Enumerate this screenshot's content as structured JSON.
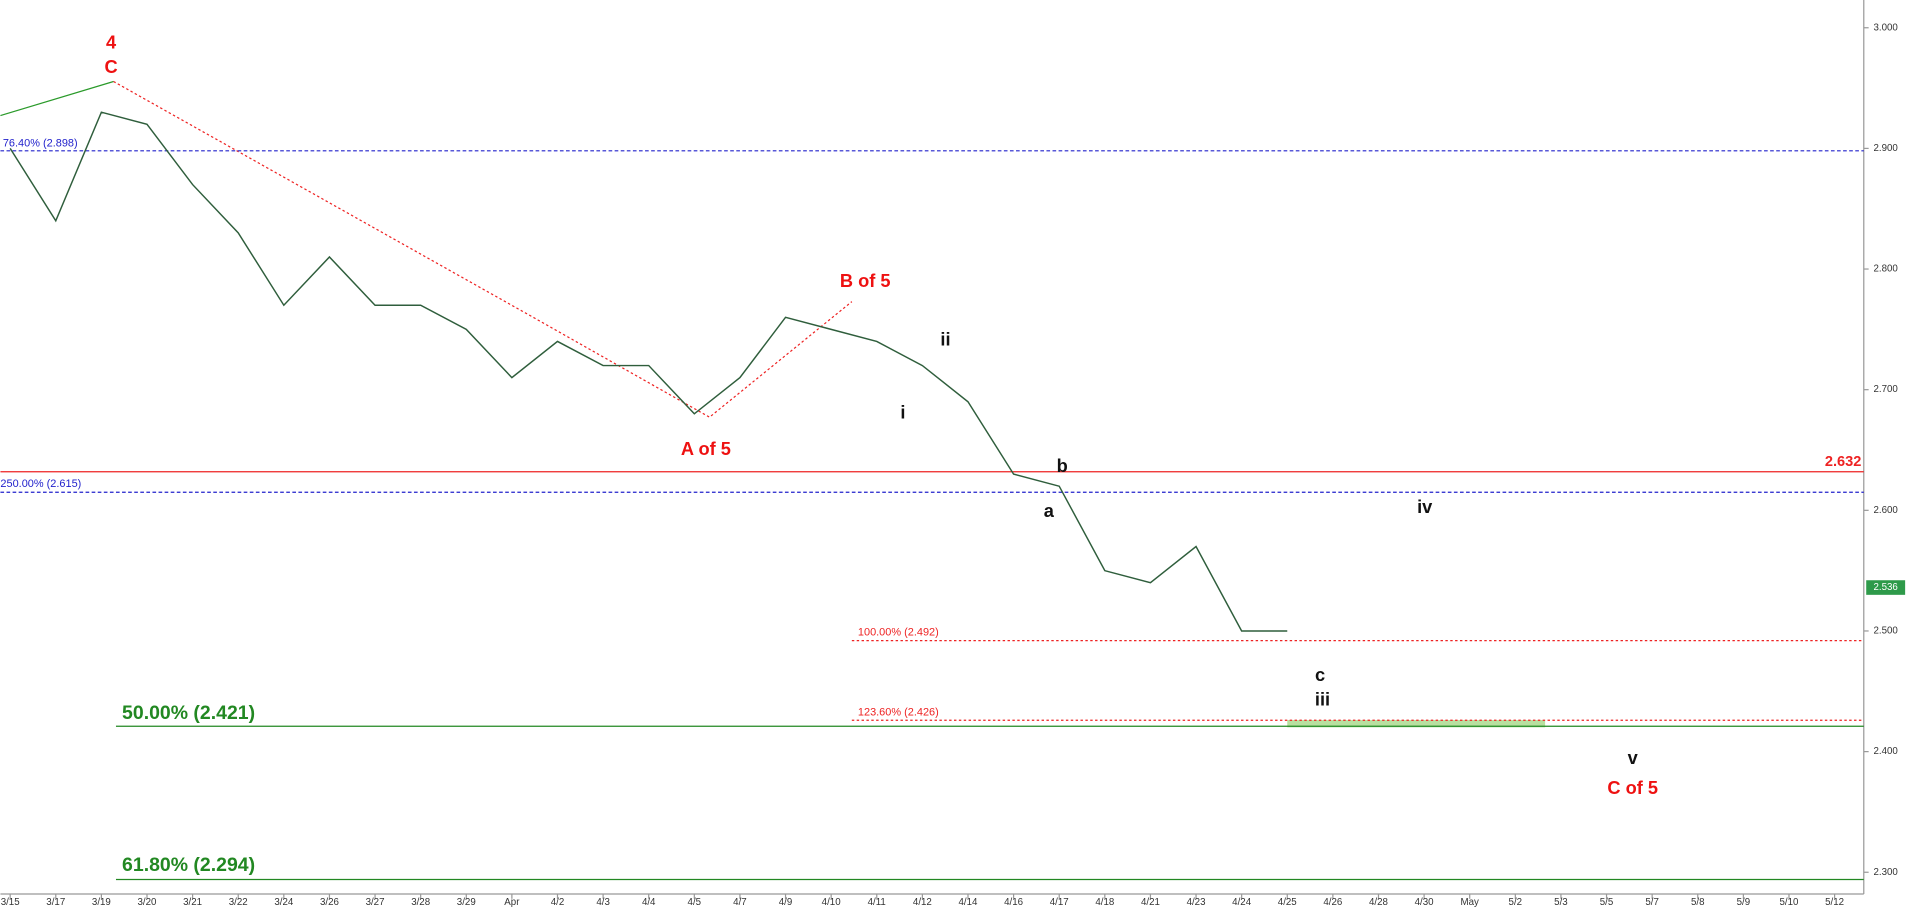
{
  "chart_data": {
    "type": "line",
    "categories": [
      "3/15",
      "3/17",
      "3/19",
      "3/20",
      "3/21",
      "3/22",
      "3/24",
      "3/26",
      "3/27",
      "3/28",
      "3/29",
      "Apr",
      "4/2",
      "4/3",
      "4/4",
      "4/5",
      "4/7",
      "4/9",
      "4/10",
      "4/11",
      "4/12",
      "4/14",
      "4/16",
      "4/17",
      "4/18",
      "4/21",
      "4/23",
      "4/24",
      "4/25",
      "4/26",
      "4/28",
      "4/30",
      "May",
      "5/2",
      "5/3",
      "5/5",
      "5/7",
      "5/8",
      "5/9",
      "5/10",
      "5/12"
    ],
    "series": [
      {
        "color": "#2f5e3c",
        "values": [
          2.9,
          2.84,
          2.93,
          2.92,
          2.87,
          2.83,
          2.77,
          2.81,
          2.77,
          2.77,
          2.75,
          2.71,
          2.74,
          2.72,
          2.72,
          2.68,
          2.71,
          2.76,
          2.75,
          2.74,
          2.72,
          2.69,
          2.63,
          2.62,
          2.55,
          2.54,
          2.57,
          2.5,
          2.5,
          null,
          null,
          null,
          null,
          null,
          null,
          null,
          null,
          null,
          null,
          null,
          null
        ]
      }
    ],
    "last_price": 2.536,
    "last_price_color": "#2e9a4a",
    "ylim": [
      2.282,
      3.023
    ],
    "yticks": [
      {
        "value": 2.3,
        "label": "2.300"
      },
      {
        "value": 2.4,
        "label": "2.400"
      },
      {
        "value": 2.5,
        "label": "2.500"
      },
      {
        "value": 2.6,
        "label": "2.600"
      },
      {
        "value": 2.7,
        "label": "2.700"
      },
      {
        "value": 2.8,
        "label": "2.800"
      },
      {
        "value": 2.9,
        "label": "2.900"
      },
      {
        "value": 3.0,
        "label": "3.000"
      }
    ],
    "levels": [
      {
        "value": 2.898,
        "label": "76.40% (2.898)",
        "color": "#2222cc",
        "style": "dashed"
      },
      {
        "value": 2.615,
        "label": "250.00% (2.615)",
        "color": "#2222cc",
        "style": "dashed"
      },
      {
        "value": 2.632,
        "label": "2.632",
        "color": "#ee2222",
        "style": "solid"
      },
      {
        "value": 2.492,
        "label": "100.00% (2.492)",
        "color": "#ee2222",
        "style": "dotted"
      },
      {
        "value": 2.426,
        "label": "123.60% (2.426)",
        "color": "#ee2222",
        "style": "dotted"
      },
      {
        "value": 2.421,
        "label": "50.00% (2.421)",
        "color": "#228822",
        "style": "solid"
      },
      {
        "value": 2.294,
        "label": "61.80% (2.294)",
        "color": "#228822",
        "style": "solid"
      }
    ],
    "annotations": [
      {
        "text": "4",
        "color": "#ee1111"
      },
      {
        "text": "C",
        "color": "#ee1111"
      },
      {
        "text": "B of 5",
        "color": "#ee1111"
      },
      {
        "text": "A of 5",
        "color": "#ee1111"
      },
      {
        "text": "i",
        "color": "#111111"
      },
      {
        "text": "ii",
        "color": "#111111"
      },
      {
        "text": "a",
        "color": "#111111"
      },
      {
        "text": "b",
        "color": "#111111"
      },
      {
        "text": "c",
        "color": "#111111"
      },
      {
        "text": "iii",
        "color": "#111111"
      },
      {
        "text": "iv",
        "color": "#111111"
      },
      {
        "text": "v",
        "color": "#111111"
      },
      {
        "text": "C of 5",
        "color": "#ee1111"
      }
    ]
  }
}
